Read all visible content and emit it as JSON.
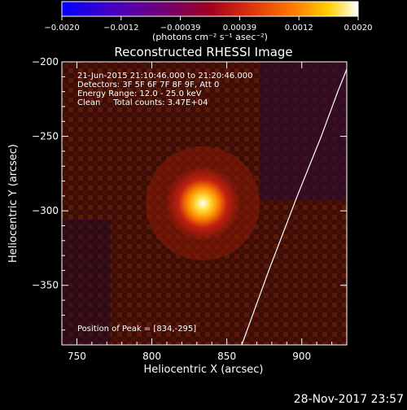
{
  "colorbar": {
    "tick_labels": [
      "−0.0020",
      "−0.0012",
      "−0.00039",
      "0.00039",
      "0.0012",
      "0.0020"
    ],
    "unit_label": "(photons cm⁻² s⁻¹ asec⁻²)",
    "range": [
      -0.002,
      0.002
    ],
    "colors": [
      "#0000ff",
      "#6a00a8",
      "#b0104a",
      "#e8401a",
      "#ffa000",
      "#ffffff"
    ]
  },
  "chart_data": {
    "type": "heatmap",
    "title": "Reconstructed RHESSI Image",
    "xlabel": "Heliocentric X (arcsec)",
    "ylabel": "Heliocentric Y (arcsec)",
    "xlim": [
      740,
      930
    ],
    "ylim": [
      -390,
      -200
    ],
    "xticks": [
      750,
      800,
      850,
      900
    ],
    "yticks": [
      -200,
      -250,
      -300,
      -350
    ],
    "peak": [
      834,
      -295
    ],
    "limb_curve": {
      "x": [
        860,
        878,
        897,
        913,
        924,
        932
      ],
      "y": [
        -390,
        -340,
        -290,
        -250,
        -220,
        -200
      ]
    },
    "annotations": [
      "21-Jun-2015 21:10:46.000 to 21:20:46.000",
      "Detectors: 3F 5F 6F 7F 8F 9F, Att 0",
      "Energy Range: 12.0 - 25.0 keV",
      "Clean     Total counts: 3.47E+04"
    ],
    "peak_label": "Position of Peak = [834,-295]"
  },
  "footer": {
    "timestamp": "28-Nov-2017 23:57"
  }
}
